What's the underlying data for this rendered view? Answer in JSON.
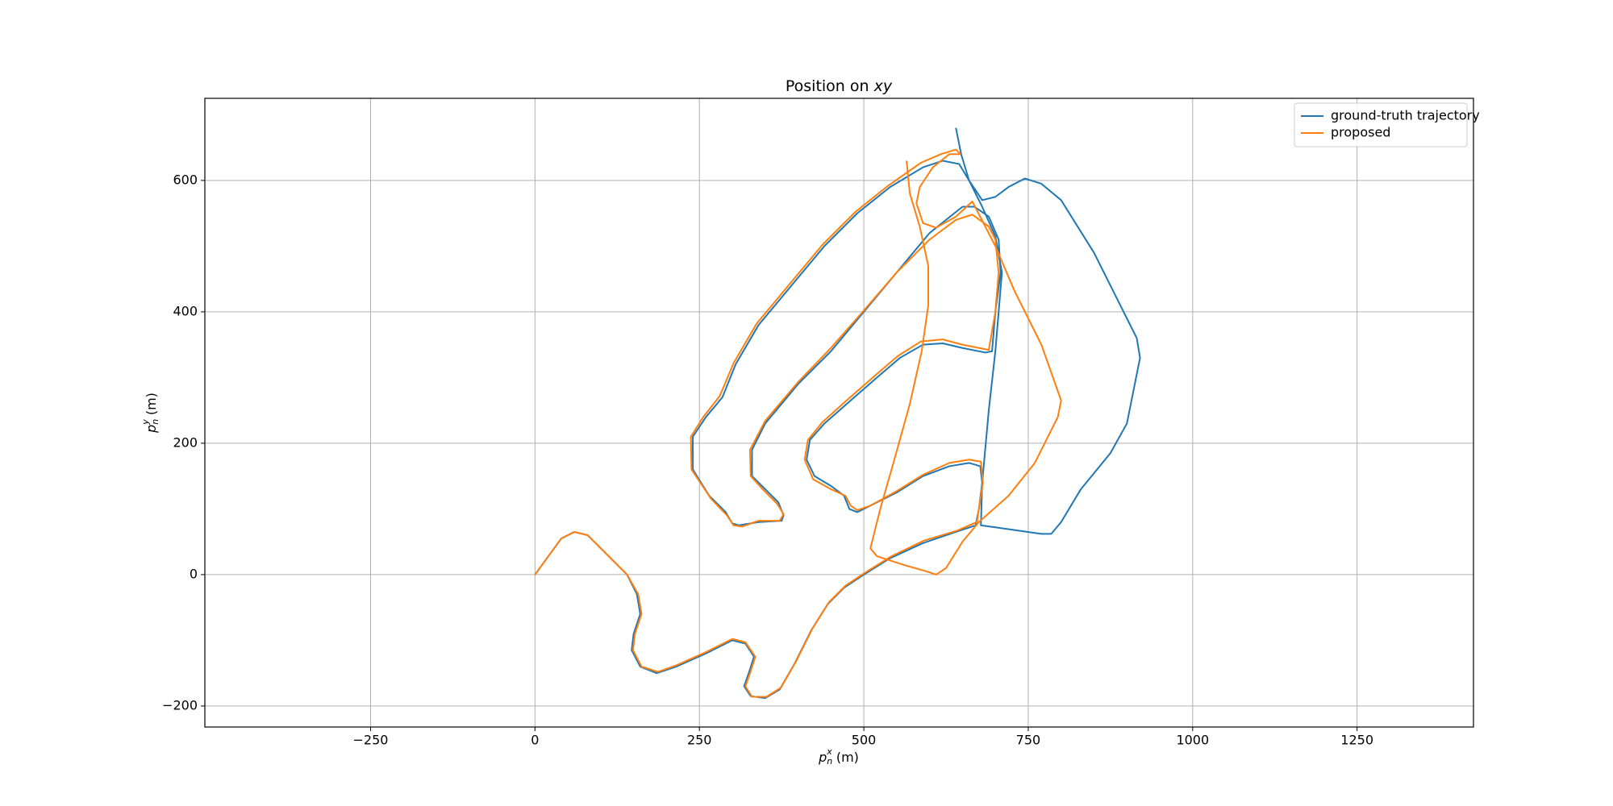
{
  "chart_data": {
    "type": "line",
    "title": [
      "Position on ",
      "xy"
    ],
    "xlabel": [
      "p",
      "n",
      "x",
      " (m)"
    ],
    "ylabel": [
      "p",
      "n",
      "y",
      " (m)"
    ],
    "xlim": [
      -502,
      1427
    ],
    "ylim": [
      -232,
      725
    ],
    "xticks": [
      {
        "value": -250,
        "label": "−250"
      },
      0,
      250,
      500,
      750,
      1000,
      1250
    ],
    "yticks": [
      {
        "value": -200,
        "label": "−200"
      },
      0,
      200,
      400,
      600
    ],
    "grid": true,
    "legend": "upper right",
    "series": [
      {
        "name": "ground-truth trajectory",
        "color": "#1f77b4",
        "x": [
          0,
          40,
          60,
          80,
          110,
          140,
          155,
          160,
          150,
          147,
          160,
          185,
          215,
          260,
          300,
          320,
          333,
          325,
          318,
          328,
          350,
          372,
          395,
          420,
          445,
          470,
          500,
          540,
          590,
          640,
          670,
          675,
          680,
          677,
          660,
          630,
          590,
          550,
          510,
          490,
          478,
          470,
          450,
          425,
          413,
          418,
          440,
          480,
          520,
          555,
          590,
          620,
          650,
          685,
          695,
          700,
          708,
          705,
          690,
          668,
          650,
          600,
          550,
          500,
          450,
          400,
          350,
          330,
          330,
          350,
          370,
          378,
          375,
          340,
          310,
          300,
          290,
          265,
          240,
          240,
          260,
          285,
          305,
          340,
          390,
          440,
          490,
          540,
          590,
          620,
          645,
          660,
          680,
          700,
          720,
          745,
          770,
          800,
          850,
          880,
          915,
          920,
          900,
          875,
          830,
          800,
          785,
          770,
          700,
          678,
          680,
          690,
          700,
          705,
          710,
          700,
          680,
          660,
          648,
          640
        ],
        "values": [
          0,
          55,
          65,
          60,
          30,
          0,
          -30,
          -60,
          -90,
          -115,
          -140,
          -150,
          -140,
          -120,
          -100,
          -105,
          -125,
          -150,
          -170,
          -185,
          -188,
          -175,
          -135,
          -85,
          -45,
          -20,
          0,
          25,
          48,
          65,
          75,
          100,
          140,
          165,
          170,
          165,
          150,
          125,
          105,
          95,
          100,
          120,
          135,
          150,
          175,
          205,
          230,
          265,
          300,
          330,
          350,
          352,
          345,
          338,
          340,
          400,
          460,
          510,
          545,
          560,
          560,
          520,
          460,
          400,
          340,
          290,
          230,
          190,
          150,
          130,
          110,
          90,
          82,
          80,
          75,
          78,
          95,
          120,
          160,
          210,
          240,
          270,
          320,
          380,
          440,
          500,
          550,
          590,
          620,
          630,
          625,
          600,
          570,
          575,
          590,
          603,
          595,
          570,
          490,
          430,
          360,
          330,
          230,
          185,
          130,
          80,
          62,
          62,
          72,
          75,
          140,
          250,
          340,
          400,
          460,
          515,
          560,
          600,
          640,
          680
        ]
      },
      {
        "name": "proposed",
        "color": "#ff7f0e",
        "x": [
          0,
          40,
          60,
          80,
          110,
          140,
          157,
          162,
          152,
          149,
          162,
          187,
          215,
          260,
          300,
          320,
          335,
          327,
          320,
          330,
          352,
          374,
          397,
          422,
          447,
          472,
          502,
          542,
          592,
          642,
          672,
          681,
          678,
          660,
          630,
          590,
          550,
          510,
          490,
          480,
          472,
          450,
          423,
          410,
          415,
          437,
          477,
          517,
          552,
          587,
          620,
          650,
          690,
          700,
          705,
          700,
          690,
          665,
          640,
          600,
          550,
          500,
          450,
          400,
          350,
          327,
          328,
          348,
          368,
          378,
          372,
          340,
          315,
          302,
          292,
          268,
          238,
          237,
          256,
          281,
          302,
          337,
          387,
          437,
          487,
          537,
          587,
          617,
          640,
          647,
          630,
          605,
          585,
          580,
          590,
          610,
          640,
          665,
          700,
          730,
          770,
          800,
          795,
          760,
          720,
          675,
          650,
          625,
          610,
          595,
          560,
          520,
          510,
          525,
          545,
          570,
          588,
          598,
          598,
          585,
          570,
          565
        ],
        "values": [
          0,
          55,
          65,
          60,
          30,
          0,
          -30,
          -60,
          -90,
          -115,
          -140,
          -148,
          -138,
          -118,
          -98,
          -103,
          -125,
          -150,
          -170,
          -186,
          -186,
          -172,
          -132,
          -82,
          -42,
          -17,
          3,
          28,
          52,
          67,
          80,
          140,
          172,
          175,
          170,
          152,
          127,
          105,
          98,
          105,
          120,
          130,
          145,
          175,
          205,
          232,
          268,
          303,
          333,
          355,
          358,
          350,
          342,
          400,
          460,
          510,
          530,
          548,
          540,
          510,
          460,
          402,
          345,
          293,
          234,
          190,
          150,
          128,
          108,
          92,
          82,
          82,
          73,
          75,
          90,
          115,
          160,
          210,
          240,
          272,
          322,
          382,
          442,
          502,
          552,
          592,
          627,
          640,
          647,
          640,
          640,
          620,
          590,
          565,
          535,
          528,
          545,
          568,
          500,
          430,
          350,
          265,
          240,
          170,
          120,
          80,
          50,
          10,
          0,
          5,
          15,
          28,
          40,
          100,
          170,
          260,
          340,
          410,
          470,
          530,
          580,
          630
        ]
      }
    ]
  }
}
